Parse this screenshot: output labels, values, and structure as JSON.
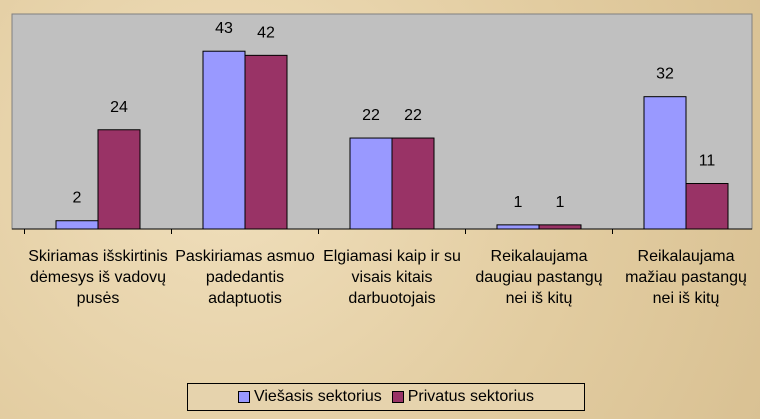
{
  "chart_data": {
    "type": "bar",
    "categories": [
      "Skiriamas išskirtinis dėmesys iš vadovų pusės",
      "Paskiriamas asmuo padedantis adaptuotis",
      "Elgiamasi kaip ir su visais kitais darbuotojais",
      "Reikalaujama daugiau pastangų nei iš kitų",
      "Reikalaujama mažiau pastangų nei iš kitų"
    ],
    "series": [
      {
        "name": "Viešasis sektorius",
        "color": "#9999ff",
        "values": [
          2,
          43,
          22,
          1,
          32
        ]
      },
      {
        "name": "Privatus sektorius",
        "color": "#993366",
        "values": [
          24,
          42,
          22,
          1,
          11
        ]
      }
    ],
    "ylim": [
      0,
      52
    ],
    "legend": "bottom"
  }
}
